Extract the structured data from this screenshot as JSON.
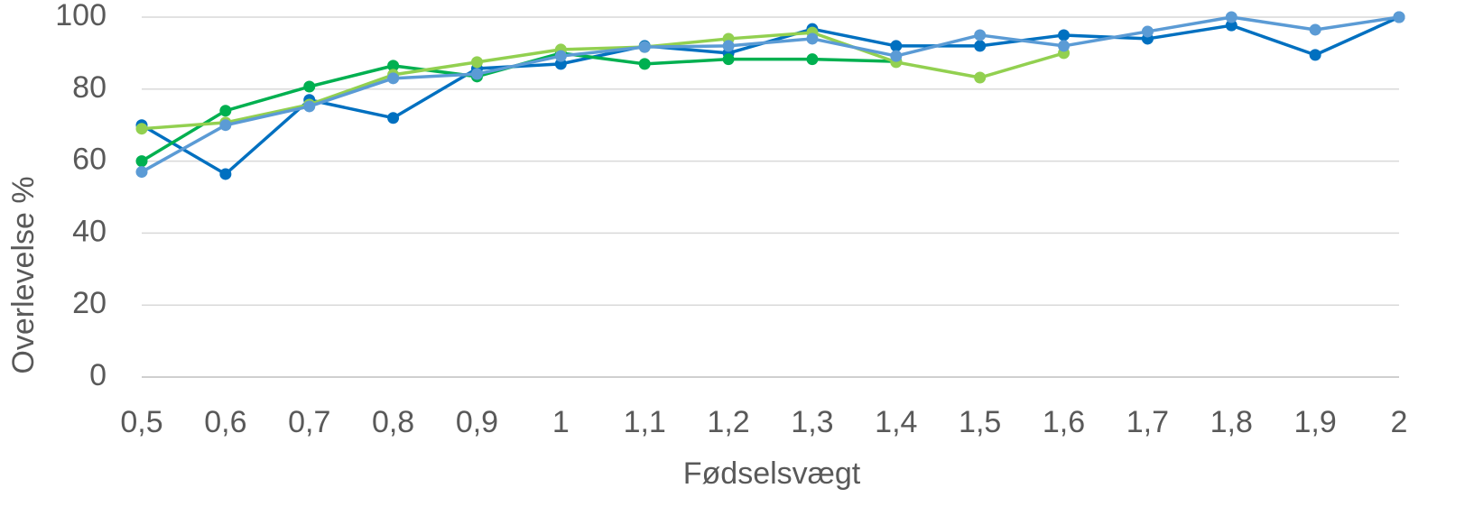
{
  "chart_data": {
    "type": "line",
    "x_label": "Fødselsvægt",
    "y_label": "Overlevelse %",
    "categories": [
      "0,5",
      "0,6",
      "0,7",
      "0,8",
      "0,9",
      "1",
      "1,1",
      "1,2",
      "1,3",
      "1,4",
      "1,5",
      "1,6",
      "1,7",
      "1,8",
      "1,9",
      "2"
    ],
    "series": [
      {
        "color": "#0070c0",
        "values": [
          70,
          56.4,
          77,
          72,
          85.7,
          87,
          92,
          90,
          96.7,
          92,
          92,
          95,
          94,
          97.7,
          89.5,
          100
        ]
      },
      {
        "color": "#00b050",
        "values": [
          60,
          74,
          80.7,
          86.5,
          83.5,
          90,
          87,
          88.3,
          88.3,
          87.7,
          null,
          null,
          null,
          null,
          null,
          null
        ]
      },
      {
        "color": "#92d050",
        "values": [
          69,
          70.7,
          75.7,
          84,
          87.5,
          91,
          91.7,
          94,
          95.7,
          87.5,
          83.2,
          90,
          null,
          null,
          null,
          null
        ]
      },
      {
        "color": "#5b9bd5",
        "values": [
          57,
          70,
          75.2,
          83,
          84.2,
          89.2,
          91.7,
          92,
          94,
          89.2,
          95,
          92,
          96,
          100,
          96.5,
          100
        ]
      }
    ],
    "ylim": [
      0,
      100
    ],
    "yticks": [
      0,
      20,
      40,
      60,
      80,
      100
    ],
    "grid": true
  }
}
